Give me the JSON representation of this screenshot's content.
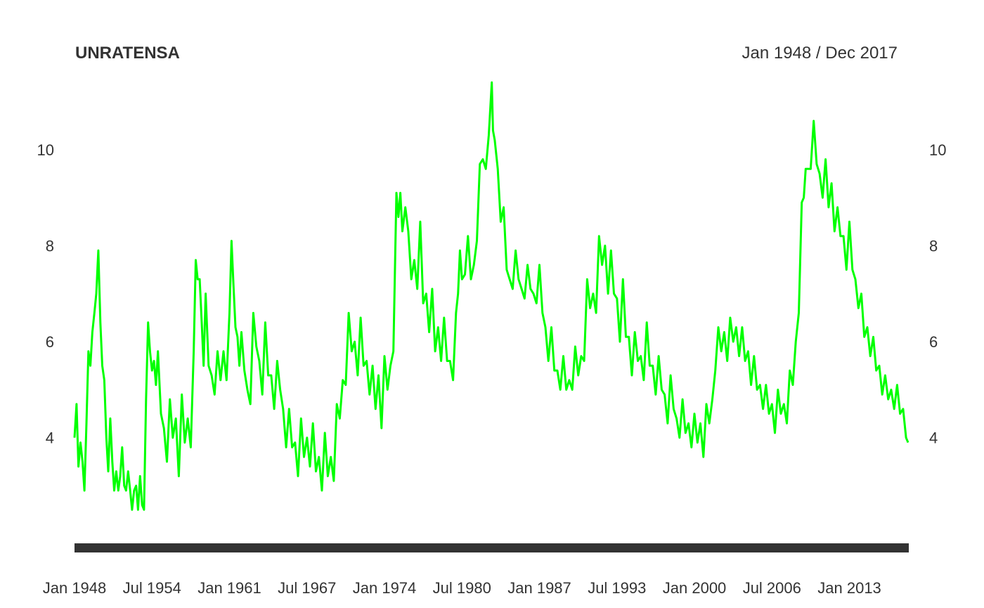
{
  "chart_data": {
    "type": "line",
    "title": "UNRATENSA",
    "date_range_label": "Jan 1948 / Dec 2017",
    "x_tick_labels": [
      "Jan 1948",
      "Jul 1954",
      "Jan 1961",
      "Jul 1967",
      "Jan 1974",
      "Jul 1980",
      "Jan 1987",
      "Jul 1993",
      "Jan 2000",
      "Jul 2006",
      "Jan 2013"
    ],
    "x_tick_values": [
      1948.0,
      1954.5,
      1961.0,
      1967.5,
      1974.0,
      1980.5,
      1987.0,
      1993.5,
      2000.0,
      2006.5,
      2013.0
    ],
    "xlim": [
      1948.0,
      2017.92
    ],
    "y_ticks": [
      4,
      6,
      8,
      10
    ],
    "y_tick_labels": [
      "4",
      "6",
      "8",
      "10"
    ],
    "ylim": [
      1.8,
      11.8
    ],
    "grid": false,
    "legend": "none",
    "line_color": "#00ff00",
    "x_axis_color": "#333333",
    "series": [
      {
        "x": [
          1948.0,
          1948.17,
          1948.33,
          1948.5,
          1948.67,
          1948.83,
          1949.0,
          1949.17,
          1949.33,
          1949.5,
          1949.67,
          1949.83,
          1950.0,
          1950.17,
          1950.33,
          1950.5,
          1950.67,
          1950.83,
          1951.0,
          1951.17,
          1951.33,
          1951.5,
          1951.67,
          1951.83,
          1952.0,
          1952.17,
          1952.33,
          1952.5,
          1952.67,
          1952.83,
          1953.0,
          1953.17,
          1953.33,
          1953.5,
          1953.67,
          1953.83,
          1954.0,
          1954.17,
          1954.33,
          1954.5,
          1954.67,
          1954.83,
          1955.0,
          1955.25,
          1955.5,
          1955.75,
          1956.0,
          1956.25,
          1956.5,
          1956.75,
          1957.0,
          1957.25,
          1957.5,
          1957.75,
          1958.0,
          1958.17,
          1958.33,
          1958.5,
          1958.67,
          1958.83,
          1959.0,
          1959.25,
          1959.5,
          1959.75,
          1960.0,
          1960.25,
          1960.5,
          1960.75,
          1961.0,
          1961.17,
          1961.33,
          1961.5,
          1961.67,
          1961.83,
          1962.0,
          1962.25,
          1962.5,
          1962.75,
          1963.0,
          1963.25,
          1963.5,
          1963.75,
          1964.0,
          1964.25,
          1964.5,
          1964.75,
          1965.0,
          1965.25,
          1965.5,
          1965.75,
          1966.0,
          1966.25,
          1966.5,
          1966.75,
          1967.0,
          1967.25,
          1967.5,
          1967.75,
          1968.0,
          1968.25,
          1968.5,
          1968.75,
          1969.0,
          1969.25,
          1969.5,
          1969.75,
          1970.0,
          1970.25,
          1970.5,
          1970.75,
          1971.0,
          1971.25,
          1971.5,
          1971.75,
          1972.0,
          1972.25,
          1972.5,
          1972.75,
          1973.0,
          1973.25,
          1973.5,
          1973.75,
          1974.0,
          1974.25,
          1974.5,
          1974.75,
          1975.0,
          1975.17,
          1975.33,
          1975.5,
          1975.75,
          1976.0,
          1976.25,
          1976.5,
          1976.75,
          1977.0,
          1977.25,
          1977.5,
          1977.75,
          1978.0,
          1978.25,
          1978.5,
          1978.75,
          1979.0,
          1979.25,
          1979.5,
          1979.75,
          1980.0,
          1980.17,
          1980.33,
          1980.5,
          1980.75,
          1981.0,
          1981.25,
          1981.5,
          1981.75,
          1982.0,
          1982.25,
          1982.5,
          1982.75,
          1983.0,
          1983.1,
          1983.25,
          1983.5,
          1983.75,
          1984.0,
          1984.25,
          1984.5,
          1984.75,
          1985.0,
          1985.25,
          1985.5,
          1985.75,
          1986.0,
          1986.25,
          1986.5,
          1986.75,
          1987.0,
          1987.25,
          1987.5,
          1987.75,
          1988.0,
          1988.25,
          1988.5,
          1988.75,
          1989.0,
          1989.25,
          1989.5,
          1989.75,
          1990.0,
          1990.25,
          1990.5,
          1990.75,
          1991.0,
          1991.25,
          1991.5,
          1991.75,
          1992.0,
          1992.25,
          1992.5,
          1992.75,
          1993.0,
          1993.25,
          1993.5,
          1993.75,
          1994.0,
          1994.25,
          1994.5,
          1994.75,
          1995.0,
          1995.25,
          1995.5,
          1995.75,
          1996.0,
          1996.25,
          1996.5,
          1996.75,
          1997.0,
          1997.25,
          1997.5,
          1997.75,
          1998.0,
          1998.25,
          1998.5,
          1998.75,
          1999.0,
          1999.25,
          1999.5,
          1999.75,
          2000.0,
          2000.25,
          2000.5,
          2000.75,
          2001.0,
          2001.25,
          2001.5,
          2001.75,
          2002.0,
          2002.25,
          2002.5,
          2002.75,
          2003.0,
          2003.25,
          2003.5,
          2003.75,
          2004.0,
          2004.25,
          2004.5,
          2004.75,
          2005.0,
          2005.25,
          2005.5,
          2005.75,
          2006.0,
          2006.25,
          2006.5,
          2006.75,
          2007.0,
          2007.25,
          2007.5,
          2007.75,
          2008.0,
          2008.25,
          2008.5,
          2008.75,
          2009.0,
          2009.17,
          2009.33,
          2009.5,
          2009.75,
          2010.0,
          2010.25,
          2010.5,
          2010.75,
          2011.0,
          2011.25,
          2011.5,
          2011.75,
          2012.0,
          2012.25,
          2012.5,
          2012.75,
          2013.0,
          2013.25,
          2013.5,
          2013.75,
          2014.0,
          2014.25,
          2014.5,
          2014.75,
          2015.0,
          2015.25,
          2015.5,
          2015.75,
          2016.0,
          2016.25,
          2016.5,
          2016.75,
          2017.0,
          2017.25,
          2017.5,
          2017.75,
          2017.92
        ],
        "y": [
          4.0,
          4.7,
          3.4,
          3.9,
          3.5,
          2.9,
          4.3,
          5.8,
          5.5,
          6.2,
          6.6,
          7.0,
          7.9,
          6.4,
          5.5,
          5.2,
          4.0,
          3.3,
          4.4,
          3.5,
          2.9,
          3.3,
          2.9,
          3.2,
          3.8,
          3.0,
          2.9,
          3.3,
          2.9,
          2.5,
          2.9,
          3.0,
          2.5,
          3.2,
          2.6,
          2.5,
          4.8,
          6.4,
          5.8,
          5.4,
          5.6,
          5.1,
          5.8,
          4.5,
          4.2,
          3.5,
          4.8,
          4.0,
          4.4,
          3.2,
          4.9,
          3.9,
          4.4,
          3.8,
          5.8,
          7.7,
          7.3,
          7.3,
          6.4,
          5.5,
          7.0,
          5.5,
          5.3,
          4.9,
          5.8,
          5.2,
          5.8,
          5.2,
          6.6,
          8.1,
          7.2,
          6.3,
          6.1,
          5.5,
          6.2,
          5.4,
          5.0,
          4.7,
          6.6,
          5.9,
          5.6,
          4.9,
          6.4,
          5.3,
          5.3,
          4.6,
          5.6,
          5.0,
          4.6,
          3.8,
          4.6,
          3.8,
          3.9,
          3.2,
          4.4,
          3.6,
          4.0,
          3.4,
          4.3,
          3.3,
          3.6,
          2.9,
          4.1,
          3.2,
          3.6,
          3.1,
          4.7,
          4.4,
          5.2,
          5.1,
          6.6,
          5.8,
          6.0,
          5.3,
          6.5,
          5.5,
          5.6,
          4.9,
          5.5,
          4.6,
          5.3,
          4.2,
          5.7,
          5.0,
          5.5,
          5.8,
          9.1,
          8.6,
          9.1,
          8.3,
          8.8,
          8.3,
          7.3,
          7.7,
          7.1,
          8.5,
          6.8,
          7.0,
          6.2,
          7.1,
          5.8,
          6.3,
          5.6,
          6.5,
          5.6,
          5.6,
          5.2,
          6.6,
          7.0,
          7.9,
          7.3,
          7.4,
          8.2,
          7.3,
          7.6,
          8.1,
          9.7,
          9.8,
          9.6,
          10.3,
          11.4,
          10.4,
          10.2,
          9.6,
          8.5,
          8.8,
          7.5,
          7.3,
          7.1,
          7.9,
          7.3,
          7.1,
          6.9,
          7.6,
          7.1,
          7.0,
          6.8,
          7.6,
          6.6,
          6.3,
          5.6,
          6.3,
          5.4,
          5.4,
          5.0,
          5.7,
          5.0,
          5.2,
          5.0,
          5.9,
          5.3,
          5.7,
          5.6,
          7.3,
          6.7,
          7.0,
          6.6,
          8.2,
          7.6,
          8.0,
          7.0,
          7.9,
          7.0,
          6.9,
          6.0,
          7.3,
          6.1,
          6.1,
          5.3,
          6.2,
          5.6,
          5.7,
          5.2,
          6.4,
          5.5,
          5.5,
          4.9,
          5.7,
          5.0,
          4.9,
          4.3,
          5.3,
          4.6,
          4.4,
          4.0,
          4.8,
          4.1,
          4.3,
          3.8,
          4.5,
          3.9,
          4.3,
          3.6,
          4.7,
          4.3,
          4.8,
          5.4,
          6.3,
          5.8,
          6.2,
          5.6,
          6.5,
          6.0,
          6.3,
          5.7,
          6.3,
          5.6,
          5.8,
          5.1,
          5.7,
          5.0,
          5.1,
          4.6,
          5.1,
          4.5,
          4.7,
          4.1,
          5.0,
          4.5,
          4.7,
          4.3,
          5.4,
          5.1,
          6.0,
          6.6,
          8.9,
          9.0,
          9.6,
          9.6,
          9.6,
          10.6,
          9.7,
          9.5,
          9.0,
          9.8,
          8.8,
          9.3,
          8.3,
          8.8,
          8.2,
          8.2,
          7.5,
          8.5,
          7.5,
          7.3,
          6.7,
          7.0,
          6.1,
          6.3,
          5.7,
          6.1,
          5.4,
          5.5,
          4.9,
          5.3,
          4.8,
          5.0,
          4.6,
          5.1,
          4.5,
          4.6,
          4.0,
          3.9
        ]
      }
    ]
  }
}
